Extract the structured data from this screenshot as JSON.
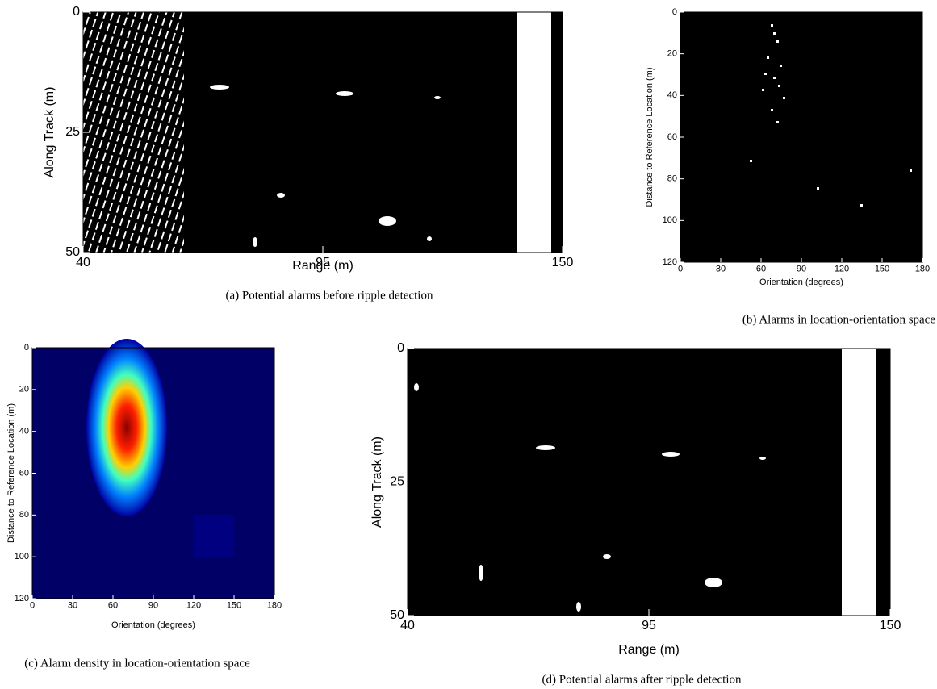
{
  "chart_data": [
    {
      "type": "image",
      "caption": "(a) Potential alarms before ripple detection",
      "xlabel": "Range (m)",
      "ylabel": "Along Track (m)",
      "xlim": [
        40,
        150
      ],
      "ylim": [
        0,
        50
      ],
      "xticks": [
        40,
        95,
        150
      ],
      "yticks": [
        0,
        25,
        50
      ],
      "y_inverted": true
    },
    {
      "type": "image",
      "caption": "(b) Alarms in location-orientation space",
      "xlabel": "Orientation (degrees)",
      "ylabel": "Distance to Reference Location (m)",
      "xlim": [
        0,
        180
      ],
      "ylim": [
        0,
        120
      ],
      "xticks": [
        0,
        30,
        60,
        90,
        120,
        150,
        180
      ],
      "yticks": [
        0,
        20,
        40,
        60,
        80,
        100,
        120
      ],
      "y_inverted": true
    },
    {
      "type": "image",
      "caption": "(c) Alarm density in location-orientation space",
      "xlabel": "Orientation (degrees)",
      "ylabel": "Distance to Reference Location (m)",
      "xlim": [
        0,
        180
      ],
      "ylim": [
        0,
        120
      ],
      "xticks": [
        0,
        30,
        60,
        90,
        120,
        150,
        180
      ],
      "yticks": [
        0,
        20,
        40,
        60,
        80,
        100,
        120
      ],
      "y_inverted": true
    },
    {
      "type": "image",
      "caption": "(d) Potential alarms after ripple detection",
      "xlabel": "Range (m)",
      "ylabel": "Along Track (m)",
      "xlim": [
        40,
        150
      ],
      "ylim": [
        0,
        50
      ],
      "xticks": [
        40,
        95,
        150
      ],
      "yticks": [
        0,
        25,
        50
      ],
      "y_inverted": true
    }
  ]
}
